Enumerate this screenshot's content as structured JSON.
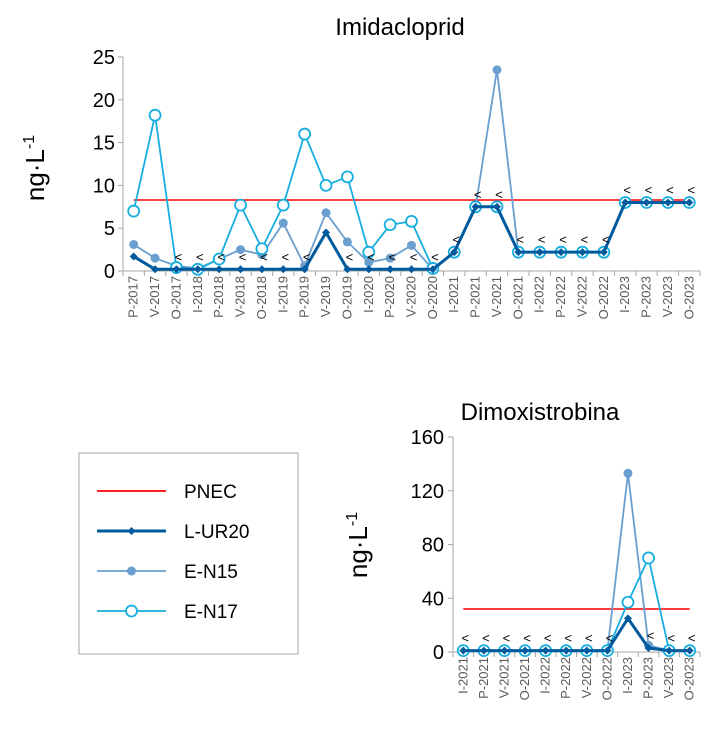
{
  "chart_data": [
    {
      "type": "line",
      "title": "Imidacloprid",
      "ylabel_main": "ng·L",
      "ylabel_sup": "-1",
      "ylim": [
        0,
        25
      ],
      "yticks": [
        0,
        5,
        10,
        15,
        20,
        25
      ],
      "categories": [
        "P-2017",
        "V-2017",
        "O-2017",
        "I-2018",
        "P-2018",
        "V-2018",
        "O-2018",
        "I-2019",
        "P-2019",
        "V-2019",
        "O-2019",
        "I-2020",
        "P-2020",
        "V-2020",
        "O-2020",
        "I-2021",
        "P-2021",
        "V-2021",
        "O-2021",
        "I-2022",
        "P-2022",
        "V-2022",
        "O-2022",
        "I-2023",
        "P-2023",
        "V-2023",
        "O-2023"
      ],
      "series": [
        {
          "name": "PNEC",
          "values": [
            8.3,
            8.3,
            8.3,
            8.3,
            8.3,
            8.3,
            8.3,
            8.3,
            8.3,
            8.3,
            8.3,
            8.3,
            8.3,
            8.3,
            8.3,
            8.3,
            8.3,
            8.3,
            8.3,
            8.3,
            8.3,
            8.3,
            8.3,
            8.3,
            8.3,
            8.3,
            8.3
          ]
        },
        {
          "name": "L-UR20",
          "values": [
            1.7,
            0.2,
            0.2,
            0.2,
            0.2,
            0.2,
            0.2,
            0.2,
            0.2,
            4.5,
            0.2,
            0.2,
            0.2,
            0.2,
            0.2,
            2.2,
            7.5,
            7.5,
            2.2,
            2.2,
            2.2,
            2.2,
            2.2,
            8,
            8,
            8,
            8
          ]
        },
        {
          "name": "E-N15",
          "values": [
            3.1,
            1.5,
            0.6,
            0.3,
            1.4,
            2.5,
            1.9,
            5.6,
            0.6,
            6.8,
            3.4,
            1,
            1.5,
            3,
            0.2,
            2.2,
            7.5,
            23.5,
            2.2,
            2.2,
            2.2,
            2.2,
            2.2,
            8,
            8,
            8,
            8
          ]
        },
        {
          "name": "E-N17",
          "values": [
            7,
            18.2,
            0.4,
            0.2,
            1.4,
            7.7,
            2.6,
            7.7,
            16,
            10,
            11,
            2.2,
            5.4,
            5.8,
            0.3,
            2.2,
            7.5,
            7.5,
            2.2,
            2.2,
            2.2,
            2.2,
            2.2,
            8,
            8,
            8,
            8
          ]
        }
      ],
      "below_lod_marker": "<",
      "below_lod_indices": [
        2,
        3,
        4,
        5,
        6,
        7,
        8,
        10,
        11,
        12,
        13,
        14,
        15,
        16,
        17,
        18,
        19,
        20,
        21,
        22,
        23,
        24,
        25,
        26
      ]
    },
    {
      "type": "line",
      "title": "Dimoxistrobina",
      "ylabel_main": "ng·L",
      "ylabel_sup": "-1",
      "ylim": [
        0,
        160
      ],
      "yticks": [
        0,
        40,
        80,
        120,
        160
      ],
      "categories": [
        "I-2021",
        "P-2021",
        "V-2021",
        "O-2021",
        "I-2022",
        "P-2022",
        "V-2022",
        "O-2022",
        "I-2023",
        "P-2023",
        "V-2023",
        "O-2023"
      ],
      "series": [
        {
          "name": "PNEC",
          "values": [
            32,
            32,
            32,
            32,
            32,
            32,
            32,
            32,
            32,
            32,
            32,
            32
          ]
        },
        {
          "name": "L-UR20",
          "values": [
            1,
            1,
            1,
            1,
            1,
            1,
            1,
            1,
            25,
            3,
            1,
            1
          ]
        },
        {
          "name": "E-N15",
          "values": [
            1,
            1,
            1,
            1,
            1,
            1,
            1,
            1,
            133,
            5,
            1,
            1
          ]
        },
        {
          "name": "E-N17",
          "values": [
            1,
            1,
            1,
            1,
            1,
            1,
            1,
            1,
            37,
            70,
            1,
            1
          ]
        }
      ],
      "below_lod_marker": "<",
      "below_lod_indices": [
        0,
        1,
        2,
        3,
        4,
        5,
        6,
        7,
        9,
        10,
        11
      ]
    }
  ],
  "legend": [
    {
      "name": "PNEC",
      "color": "#ff0000",
      "marker": "none"
    },
    {
      "name": "L-UR20",
      "color": "#005b9e",
      "marker": "diamond"
    },
    {
      "name": "E-N15",
      "color": "#6a9fd0",
      "marker": "filled-circle"
    },
    {
      "name": "E-N17",
      "color": "#16aee0",
      "marker": "open-circle"
    }
  ],
  "colors": {
    "PNEC": "#ff0000",
    "L-UR20": "#005b9e",
    "E-N15": "#6a9fd0",
    "E-N17": "#16aee0",
    "axis": "#a6a6a6"
  }
}
